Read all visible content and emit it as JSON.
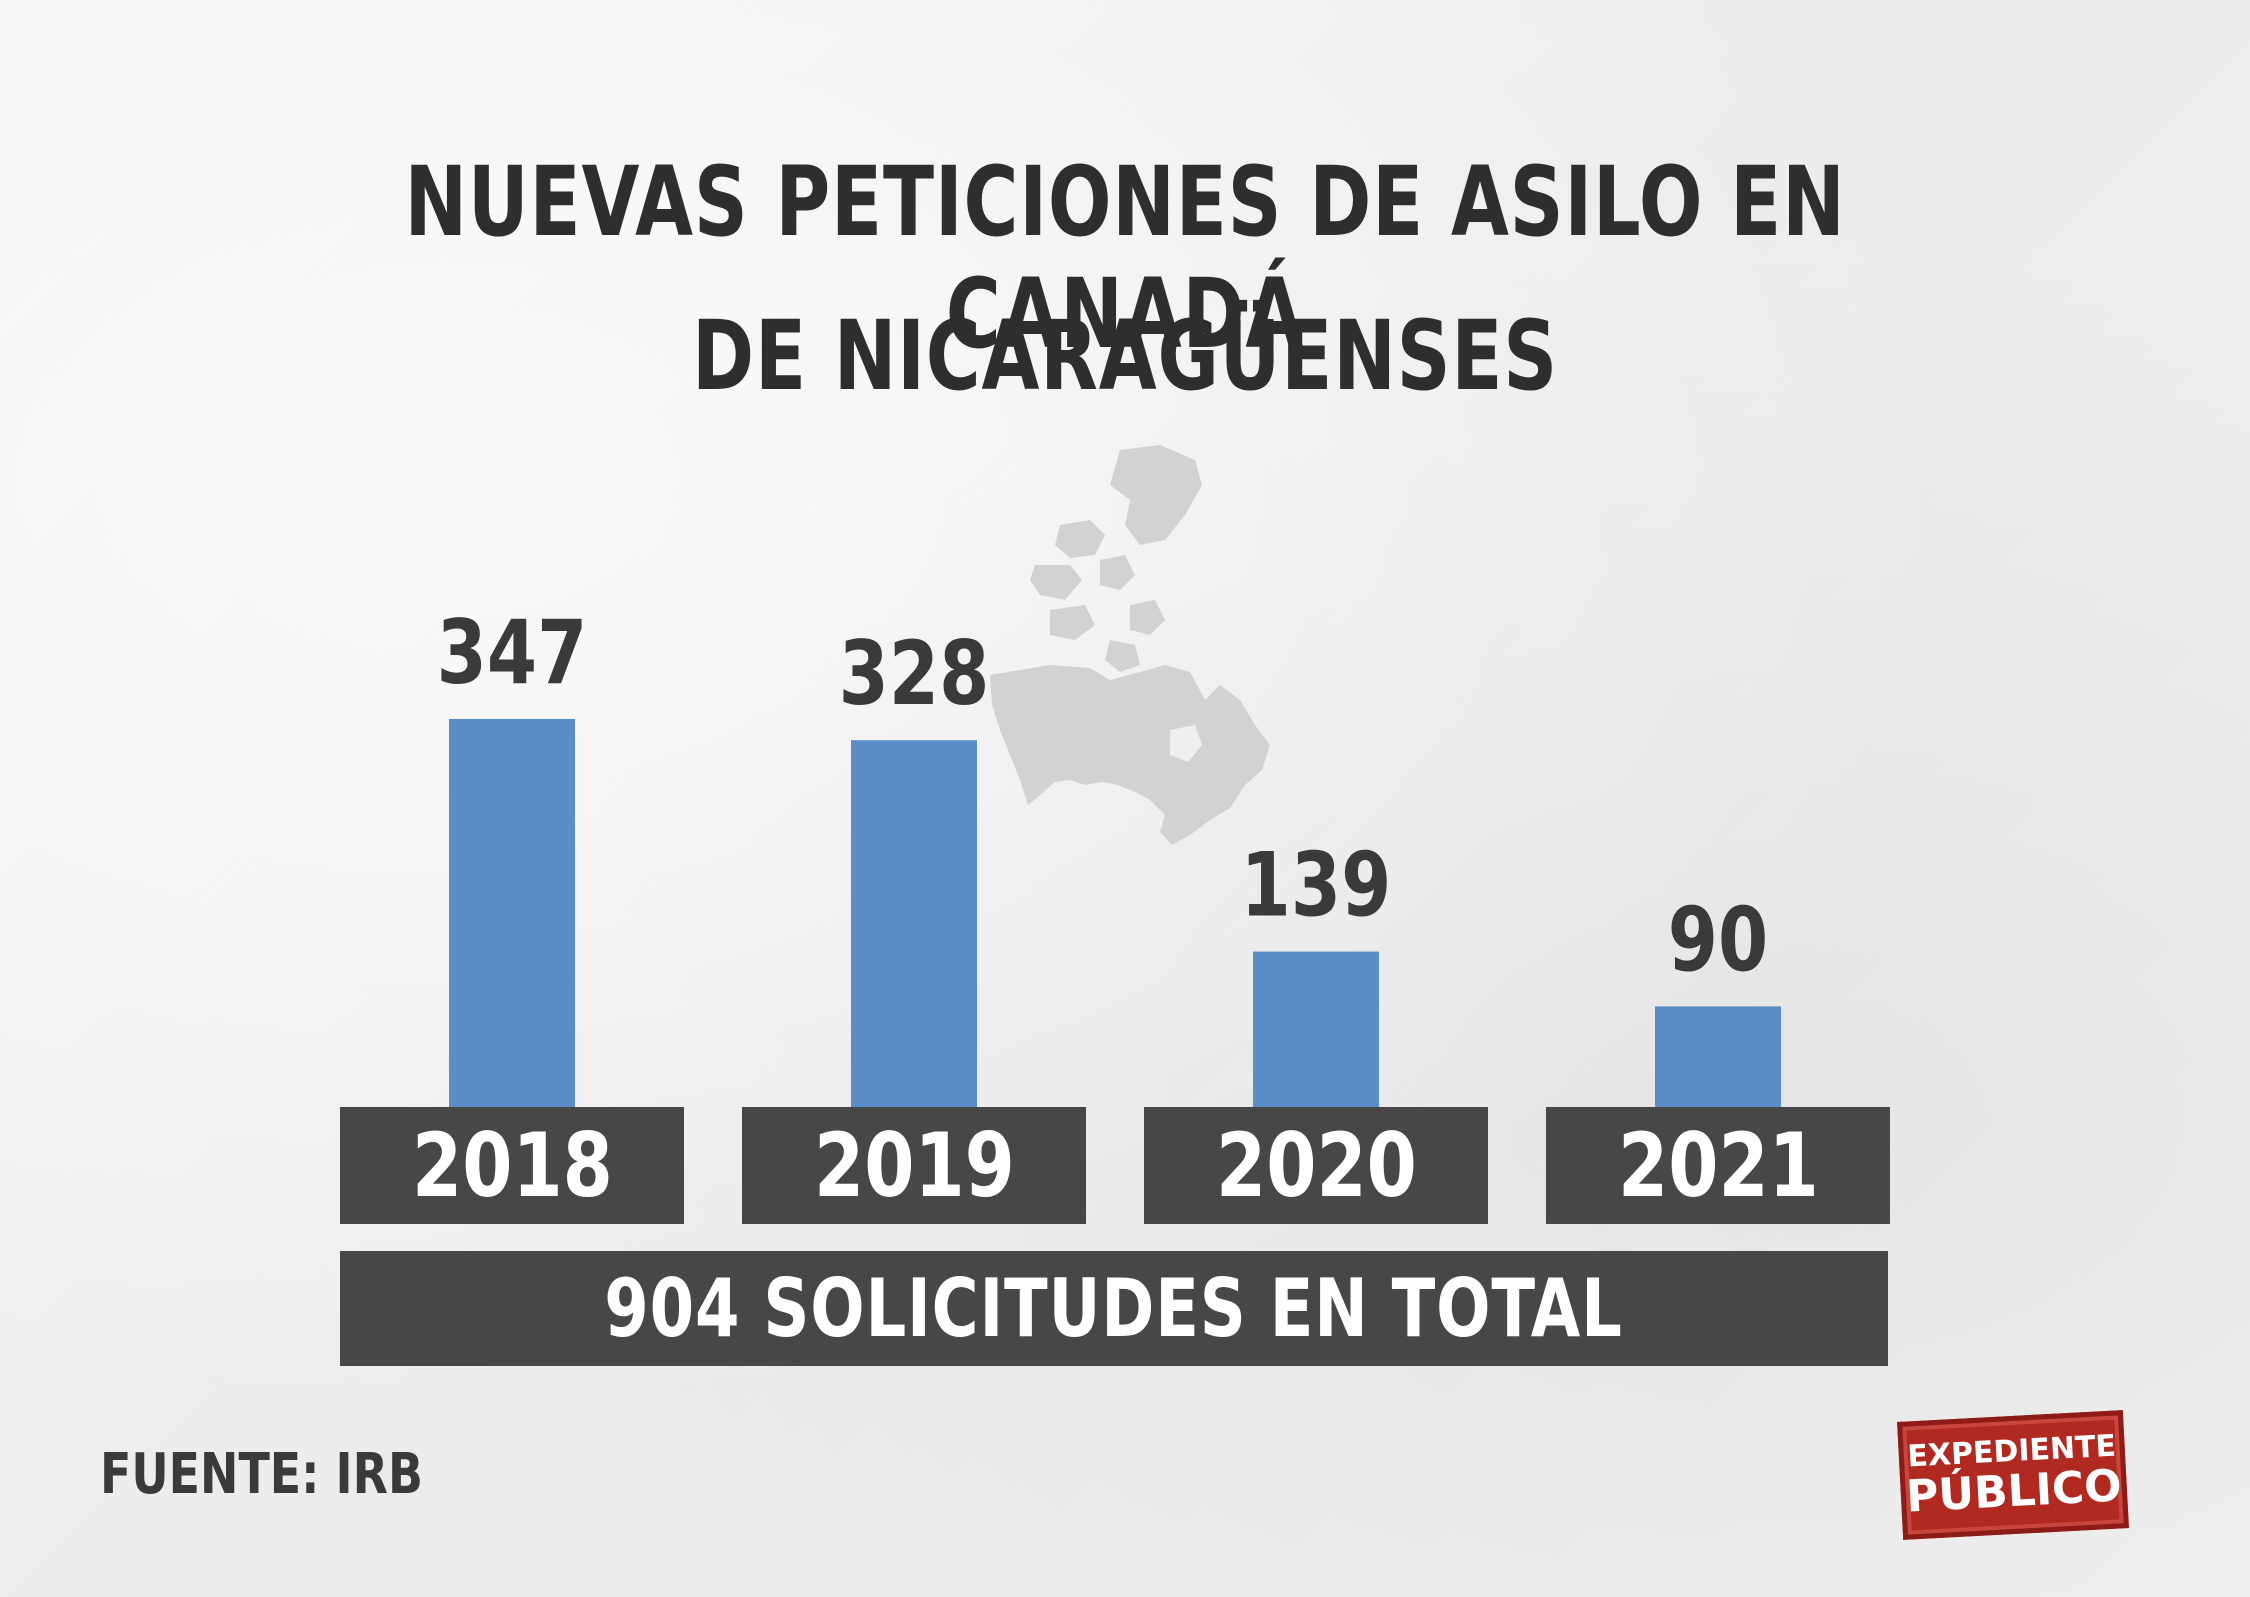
{
  "title_line1": "NUEVAS PETICIONES DE ASILO EN CANADÁ",
  "title_line2": "DE NICARAGÜENSES",
  "chart_data": {
    "type": "bar",
    "categories": [
      "2018",
      "2019",
      "2020",
      "2021"
    ],
    "values": [
      347,
      328,
      139,
      90
    ],
    "ylim": [
      0,
      347
    ],
    "bar_color": "#5b8ec7",
    "grid": false
  },
  "total_label": "904 SOLICITUDES EN TOTAL",
  "source": "FUENTE: IRB",
  "logo": {
    "line1": "EXPEDIENTE",
    "line2": "PÚBLICO",
    "color": "#b02a22"
  },
  "map_icon": "canada-map-icon"
}
